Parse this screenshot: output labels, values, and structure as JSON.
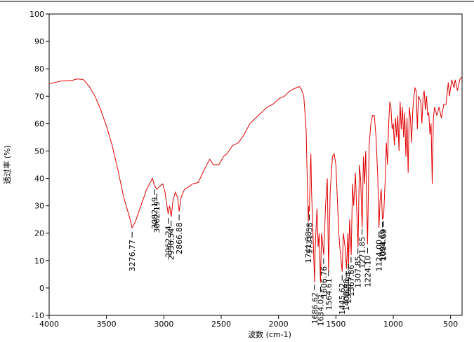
{
  "chart_data": {
    "type": "line",
    "xlabel": "波数 (cm-1)",
    "ylabel": "透过率 (%)",
    "color": "#e00000",
    "xlim": [
      4000,
      400
    ],
    "ylim": [
      -10,
      100
    ],
    "xticks": [
      4000,
      3500,
      3000,
      2500,
      2000,
      1500,
      1000,
      500
    ],
    "yticks": [
      -10,
      0,
      10,
      20,
      30,
      40,
      50,
      60,
      70,
      80,
      90,
      100
    ],
    "x": [
      4000,
      3900,
      3800,
      3750,
      3700,
      3650,
      3600,
      3550,
      3500,
      3450,
      3400,
      3350,
      3300,
      3276.77,
      3250,
      3200,
      3150,
      3100,
      3082,
      3062,
      3040,
      3010,
      2990,
      2962,
      2950,
      2936,
      2920,
      2900,
      2880,
      2866,
      2850,
      2820,
      2780,
      2750,
      2700,
      2650,
      2600,
      2570,
      2520,
      2480,
      2450,
      2400,
      2350,
      2300,
      2250,
      2200,
      2150,
      2100,
      2050,
      2000,
      1950,
      1900,
      1850,
      1820,
      1800,
      1780,
      1760,
      1750,
      1741,
      1735,
      1731,
      1725,
      1718,
      1712,
      1700,
      1686,
      1680,
      1665,
      1655,
      1646,
      1634,
      1625,
      1615,
      1606,
      1590,
      1575,
      1564,
      1550,
      1530,
      1515,
      1500,
      1490,
      1475,
      1460,
      1445,
      1435,
      1420,
      1408,
      1395,
      1390,
      1380,
      1367,
      1355,
      1345,
      1330,
      1307,
      1295,
      1285,
      1271,
      1260,
      1250,
      1240,
      1224,
      1210,
      1195,
      1180,
      1165,
      1150,
      1135,
      1124,
      1115,
      1105,
      1094,
      1084,
      1070,
      1060,
      1050,
      1040,
      1030,
      1020,
      1010,
      1000,
      990,
      980,
      970,
      960,
      950,
      940,
      930,
      920,
      910,
      900,
      890,
      880,
      870,
      860,
      850,
      840,
      830,
      820,
      810,
      800,
      790,
      780,
      770,
      760,
      750,
      740,
      730,
      720,
      710,
      700,
      690,
      680,
      670,
      660,
      650,
      640,
      620,
      600,
      580,
      560,
      540,
      520,
      510,
      490,
      470,
      460,
      440,
      420,
      405
    ],
    "values": [
      74.5,
      75.5,
      75.8,
      76.3,
      76,
      73.5,
      70,
      65,
      59,
      52,
      43,
      33,
      26,
      22,
      24,
      30,
      36,
      40,
      37.5,
      36,
      37,
      38,
      35,
      27,
      30,
      26,
      32,
      35,
      33,
      28,
      33,
      36,
      37,
      38,
      38.5,
      43,
      47,
      45,
      45,
      48,
      49,
      52,
      53,
      56,
      60,
      62,
      64,
      66,
      67,
      69,
      70,
      72,
      73,
      73.5,
      72.5,
      70,
      58,
      40,
      24,
      30,
      28,
      40,
      49,
      35,
      20,
      2,
      15,
      29,
      15,
      20,
      2,
      20,
      16,
      12,
      30,
      40,
      6,
      35,
      48,
      49,
      45,
      35,
      20,
      12,
      6,
      20,
      15,
      7,
      20,
      8,
      25,
      12,
      38,
      30,
      42,
      15,
      45,
      40,
      22,
      48,
      38,
      50,
      16,
      52,
      60,
      63,
      63,
      55,
      40,
      22,
      32,
      36,
      25,
      26,
      40,
      53,
      45,
      60,
      68,
      66,
      58,
      60,
      52,
      62,
      55,
      63,
      50,
      68,
      58,
      66,
      55,
      64,
      48,
      62,
      42,
      66,
      62,
      53,
      65,
      70,
      73,
      72,
      58,
      70,
      69,
      68,
      60,
      70,
      72,
      65,
      70,
      63,
      64,
      56,
      60,
      38,
      62,
      66,
      63,
      66,
      62,
      67,
      67,
      75,
      70,
      76,
      73,
      76,
      72,
      76,
      77
    ],
    "peaks": [
      3276.77,
      3082.19,
      3062.19,
      2962.24,
      2936.54,
      2866.88,
      1741.58,
      1731.58,
      1686.62,
      1634.02,
      1606.76,
      1564.61,
      1445.62,
      1408.98,
      1390.94,
      1367.86,
      1307.85,
      1271.85,
      1224.1,
      1124,
      1094.69,
      1084.69
    ],
    "peak_labels": [
      "3276.77",
      "3082.19",
      "3062.19",
      "2962.24",
      "2936.54",
      "2866.88",
      "1741.58",
      "1731.58",
      "1686.62",
      "1634.02",
      "1606.76",
      "1564.61",
      "1445.62",
      "1408.98",
      "1390.94",
      "1367.86",
      "1307.85",
      "1271.85",
      "1224.10",
      "1124.00",
      "1094.69",
      "1084.69"
    ]
  }
}
